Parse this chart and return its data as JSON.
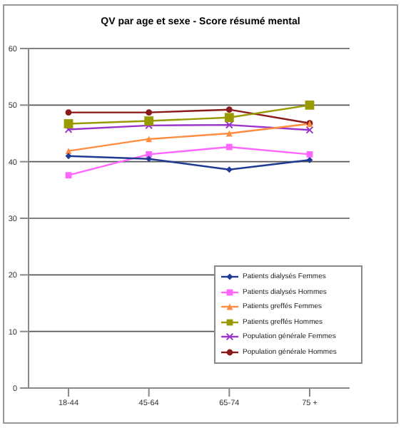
{
  "chart_data": {
    "type": "line",
    "title": "QV par age et sexe - Score résumé mental",
    "categories": [
      "18-44",
      "45-64",
      "65-74",
      "75 +"
    ],
    "ylim": [
      0,
      60
    ],
    "yticks": [
      0,
      10,
      20,
      30,
      40,
      50,
      60
    ],
    "grid": "y",
    "legend": "bottom right",
    "series": [
      {
        "name": "Patients dialysés  Femmes",
        "color": "#1f3a93",
        "marker": "diamond",
        "values": [
          41,
          40.5,
          38.6,
          40.3
        ]
      },
      {
        "name": "Patients dialysés  Hommes",
        "color": "#ff66ff",
        "marker": "square",
        "values": [
          37.6,
          41.3,
          42.6,
          41.3
        ]
      },
      {
        "name": "Patients greffés  Femmes",
        "color": "#ff8c40",
        "marker": "triangle",
        "values": [
          41.9,
          44,
          45,
          46.7
        ]
      },
      {
        "name": "Patients greffés  Hommes",
        "color": "#999900",
        "marker": "square",
        "values": [
          46.7,
          47.2,
          47.8,
          50
        ]
      },
      {
        "name": "Population générale Femmes",
        "color": "#9933cc",
        "marker": "cross",
        "values": [
          45.7,
          46.4,
          46.5,
          45.6
        ]
      },
      {
        "name": "Population générale  Hommes",
        "color": "#8b1a1a",
        "marker": "circle",
        "values": [
          48.7,
          48.7,
          49.2,
          46.8
        ]
      }
    ]
  }
}
